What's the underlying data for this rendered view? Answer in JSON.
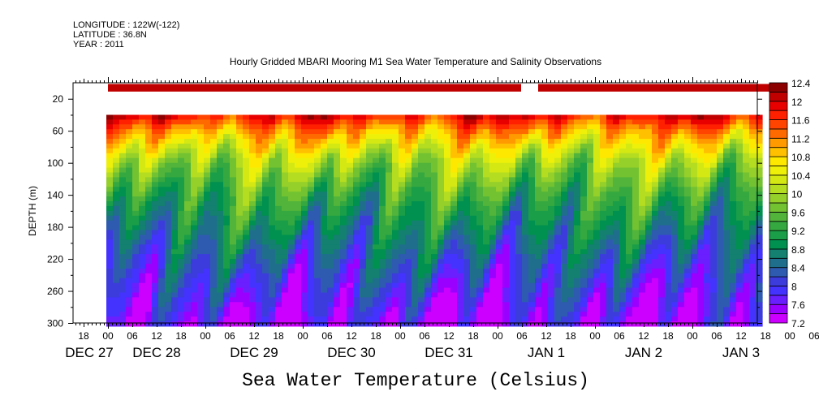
{
  "header": {
    "longitude": "LONGITUDE : 122W(-122)",
    "latitude": "LATITUDE : 36.8N",
    "year": "YEAR : 2011"
  },
  "chart_data": {
    "type": "heatmap",
    "title": "Hourly Gridded MBARI Mooring M1 Sea Water Temperature and Salinity Observations",
    "xlabel": "",
    "ylabel": "DEPTH (m)",
    "colorbar_title": "Sea Water Temperature (Celsius)",
    "x_start": "DEC 27 2011 ~15h",
    "x_end": "JAN 3 2012 ~16h",
    "x_tick_labels": [
      "18",
      "00",
      "06",
      "12",
      "18",
      "00",
      "06",
      "12",
      "18",
      "00",
      "06",
      "12",
      "18",
      "00",
      "06",
      "12",
      "18",
      "00",
      "06",
      "12",
      "18",
      "00",
      "06",
      "12",
      "18",
      "00",
      "06",
      "12",
      "18",
      "00",
      "06",
      "12"
    ],
    "day_labels": [
      "DEC 27",
      "DEC 28",
      "DEC 29",
      "DEC 30",
      "DEC 31",
      "JAN  1",
      "JAN  2",
      "JAN  3"
    ],
    "ylim": [
      0,
      300
    ],
    "y_inverted": true,
    "y_tick_labels": [
      "20",
      "60",
      "100",
      "140",
      "180",
      "220",
      "260",
      "300"
    ],
    "colorbar_levels": [
      "12.4",
      "12",
      "11.6",
      "11.2",
      "10.8",
      "10.4",
      "10",
      "9.6",
      "9.2",
      "8.8",
      "8.4",
      "8",
      "7.6",
      "7.2"
    ],
    "color_range": [
      7.2,
      12.4
    ],
    "color_step": 0.2,
    "colors_low_to_high": [
      "#cc00ff",
      "#9900ff",
      "#6a1fff",
      "#4433ff",
      "#3c3cdd",
      "#2e5bb0",
      "#1f6e8c",
      "#138070",
      "#009050",
      "#1a9e48",
      "#35a840",
      "#52b43a",
      "#72c232",
      "#94cf2a",
      "#b4dc20",
      "#d4e814",
      "#eef00a",
      "#ffe800",
      "#ffc000",
      "#ff9a00",
      "#ff6a00",
      "#ff4400",
      "#ff2000",
      "#e80000",
      "#c00000",
      "#8c0000"
    ],
    "mean_profile": {
      "depth": [
        40,
        60,
        80,
        100,
        140,
        180,
        220,
        260,
        300
      ],
      "temperature": [
        11.9,
        11.1,
        10.5,
        10.0,
        9.3,
        8.8,
        8.3,
        7.9,
        7.5
      ]
    },
    "surface_series": {
      "depth": 5,
      "temperature": 12.1,
      "gap_hours": [
        [
          102,
          106
        ],
        [
          167,
          178
        ],
        [
          189,
          192
        ]
      ]
    }
  }
}
